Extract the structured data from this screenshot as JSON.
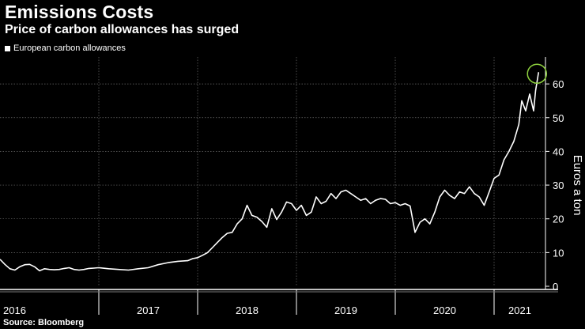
{
  "title": "Emissions Costs",
  "subtitle": "Price of carbon allowances has surged",
  "source": "Source: Bloomberg",
  "chart_data": {
    "type": "line",
    "ylabel": "Euros a ton",
    "ylim": [
      0,
      68
    ],
    "yticks": [
      0,
      10,
      20,
      30,
      40,
      50,
      60
    ],
    "xlim": [
      2016.0,
      2021.52
    ],
    "xticks": [
      "2016",
      "2017",
      "2018",
      "2019",
      "2020",
      "2021"
    ],
    "grid": true,
    "legend_position": "top-left",
    "highlight_marker": "green circle around latest value",
    "colors": {
      "line": "#ffffff",
      "highlight": "#8ed13e",
      "grid": "#6e6e6e"
    },
    "series": [
      {
        "name": "European carbon allowances",
        "x": [
          2016.0,
          2016.05,
          2016.1,
          2016.15,
          2016.2,
          2016.25,
          2016.3,
          2016.35,
          2016.4,
          2016.45,
          2016.5,
          2016.55,
          2016.6,
          2016.65,
          2016.7,
          2016.75,
          2016.8,
          2016.85,
          2016.9,
          2016.95,
          2017.0,
          2017.1,
          2017.2,
          2017.3,
          2017.4,
          2017.5,
          2017.6,
          2017.7,
          2017.8,
          2017.9,
          2017.95,
          2018.0,
          2018.05,
          2018.1,
          2018.15,
          2018.2,
          2018.25,
          2018.3,
          2018.35,
          2018.4,
          2018.45,
          2018.5,
          2018.55,
          2018.6,
          2018.65,
          2018.7,
          2018.75,
          2018.8,
          2018.85,
          2018.9,
          2018.95,
          2019.0,
          2019.05,
          2019.1,
          2019.15,
          2019.2,
          2019.25,
          2019.3,
          2019.35,
          2019.4,
          2019.45,
          2019.5,
          2019.55,
          2019.6,
          2019.65,
          2019.7,
          2019.75,
          2019.8,
          2019.85,
          2019.9,
          2019.95,
          2020.0,
          2020.05,
          2020.1,
          2020.15,
          2020.2,
          2020.25,
          2020.3,
          2020.35,
          2020.4,
          2020.45,
          2020.5,
          2020.55,
          2020.6,
          2020.65,
          2020.7,
          2020.75,
          2020.8,
          2020.85,
          2020.9,
          2020.95,
          2021.0,
          2021.05,
          2021.1,
          2021.15,
          2021.2,
          2021.25,
          2021.28,
          2021.32,
          2021.36,
          2021.4,
          2021.42,
          2021.45
        ],
        "y": [
          8.0,
          6.5,
          5.2,
          4.8,
          5.8,
          6.4,
          6.5,
          5.8,
          4.6,
          5.2,
          5.0,
          4.9,
          5.0,
          5.3,
          5.5,
          5.0,
          4.8,
          5.0,
          5.3,
          5.4,
          5.5,
          5.2,
          5.0,
          4.8,
          5.2,
          5.5,
          6.4,
          7.0,
          7.4,
          7.6,
          8.2,
          8.5,
          9.2,
          10.0,
          11.5,
          13.0,
          14.5,
          15.7,
          16.0,
          18.5,
          20.0,
          24.0,
          21.0,
          20.5,
          19.2,
          17.5,
          23.0,
          19.8,
          22.0,
          25.0,
          24.5,
          22.5,
          24.0,
          21.0,
          22.0,
          26.5,
          24.5,
          25.2,
          27.5,
          26.0,
          28.0,
          28.5,
          27.5,
          26.5,
          25.5,
          26.0,
          24.5,
          25.5,
          26.0,
          25.8,
          24.5,
          24.8,
          24.0,
          24.5,
          23.8,
          16.0,
          19.0,
          20.0,
          18.5,
          22.0,
          26.5,
          28.5,
          27.0,
          26.0,
          28.0,
          27.5,
          29.5,
          27.5,
          26.5,
          24.0,
          28.0,
          32.0,
          33.0,
          37.5,
          40.0,
          43.0,
          48.0,
          55.0,
          52.0,
          57.0,
          52.0,
          58.0,
          63.5
        ]
      }
    ]
  }
}
